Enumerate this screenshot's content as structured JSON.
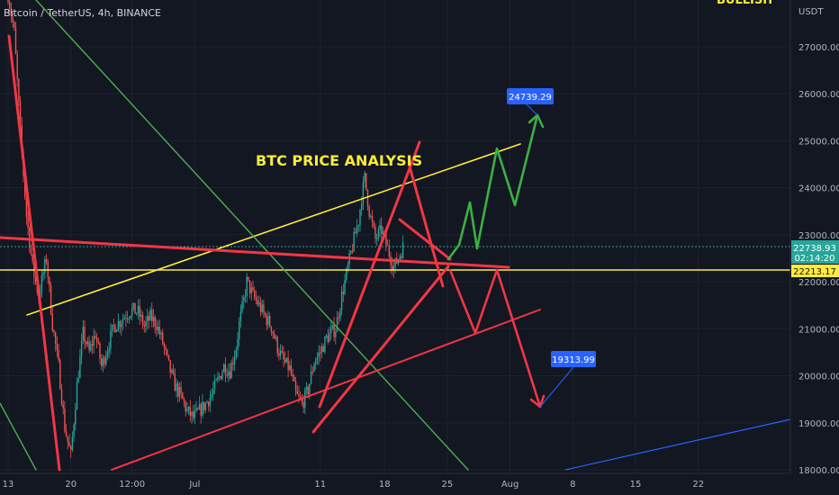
{
  "header": {
    "symbol_title": "Bitcoin / TetherUS, 4h, BINANCE",
    "corner_badge": "BULLISH"
  },
  "annotation_title": "BTC PRICE ANALYSIS",
  "colors": {
    "background": "#131722",
    "up_candle": "#26a69a",
    "down_candle": "#ef5350",
    "red_line": "#f23645",
    "yellow_line": "#ffeb3b",
    "green_line": "#4caf50",
    "green_path": "#3cb043",
    "blue_line": "#2962ff",
    "callout": "#2962ff"
  },
  "chart_data": {
    "type": "candlestick",
    "title": "Bitcoin / TetherUS, 4h, BINANCE",
    "price_axis_label": "USDT",
    "ylim": [
      17950,
      28200
    ],
    "yticks": [
      "18000.00",
      "19000.00",
      "20000.00",
      "21000.00",
      "22000.00",
      "23000.00",
      "24000.00",
      "25000.00",
      "26000.00",
      "27000.00"
    ],
    "x_ticks": [
      "13",
      "20",
      "12:00",
      "Jul",
      "11",
      "18",
      "25",
      "Aug",
      "8",
      "15",
      "22"
    ],
    "x_tick_index": [
      0,
      41,
      81,
      122,
      204,
      246,
      287,
      328,
      369,
      410,
      451
    ],
    "bars_shown": 287,
    "current_price": "22738.93",
    "countdown": "02:14:20",
    "level_label": "22213.17",
    "price_path": [
      [
        0,
        28100
      ],
      [
        4,
        27300
      ],
      [
        8,
        25200
      ],
      [
        12,
        23400
      ],
      [
        16,
        22300
      ],
      [
        20,
        21700
      ],
      [
        25,
        22500
      ],
      [
        29,
        21100
      ],
      [
        33,
        20200
      ],
      [
        37,
        18900
      ],
      [
        41,
        18300
      ],
      [
        45,
        19800
      ],
      [
        49,
        20900
      ],
      [
        53,
        20500
      ],
      [
        57,
        20900
      ],
      [
        61,
        20200
      ],
      [
        65,
        20600
      ],
      [
        69,
        21050
      ],
      [
        73,
        21150
      ],
      [
        77,
        21300
      ],
      [
        81,
        21400
      ],
      [
        85,
        21350
      ],
      [
        89,
        21050
      ],
      [
        93,
        21250
      ],
      [
        97,
        21100
      ],
      [
        101,
        20700
      ],
      [
        105,
        20200
      ],
      [
        109,
        19800
      ],
      [
        113,
        19550
      ],
      [
        117,
        19250
      ],
      [
        121,
        19100
      ],
      [
        125,
        19250
      ],
      [
        129,
        19400
      ],
      [
        133,
        19600
      ],
      [
        137,
        19900
      ],
      [
        141,
        20200
      ],
      [
        145,
        20100
      ],
      [
        149,
        20600
      ],
      [
        151,
        21100
      ],
      [
        154,
        21600
      ],
      [
        156,
        22000
      ],
      [
        160,
        21700
      ],
      [
        164,
        21500
      ],
      [
        168,
        21250
      ],
      [
        172,
        21050
      ],
      [
        176,
        20600
      ],
      [
        180,
        20300
      ],
      [
        184,
        20150
      ],
      [
        188,
        19600
      ],
      [
        192,
        19400
      ],
      [
        196,
        19700
      ],
      [
        200,
        20300
      ],
      [
        204,
        20500
      ],
      [
        208,
        20800
      ],
      [
        211,
        20900
      ],
      [
        214,
        21000
      ],
      [
        218,
        21700
      ],
      [
        222,
        22300
      ],
      [
        226,
        22900
      ],
      [
        229,
        23300
      ],
      [
        231,
        23800
      ],
      [
        233,
        24200
      ],
      [
        236,
        23500
      ],
      [
        240,
        22900
      ],
      [
        244,
        23100
      ],
      [
        248,
        22700
      ],
      [
        252,
        22300
      ],
      [
        255,
        22500
      ],
      [
        258,
        22739
      ]
    ],
    "callouts": [
      "24739.29",
      "19313.99"
    ]
  }
}
